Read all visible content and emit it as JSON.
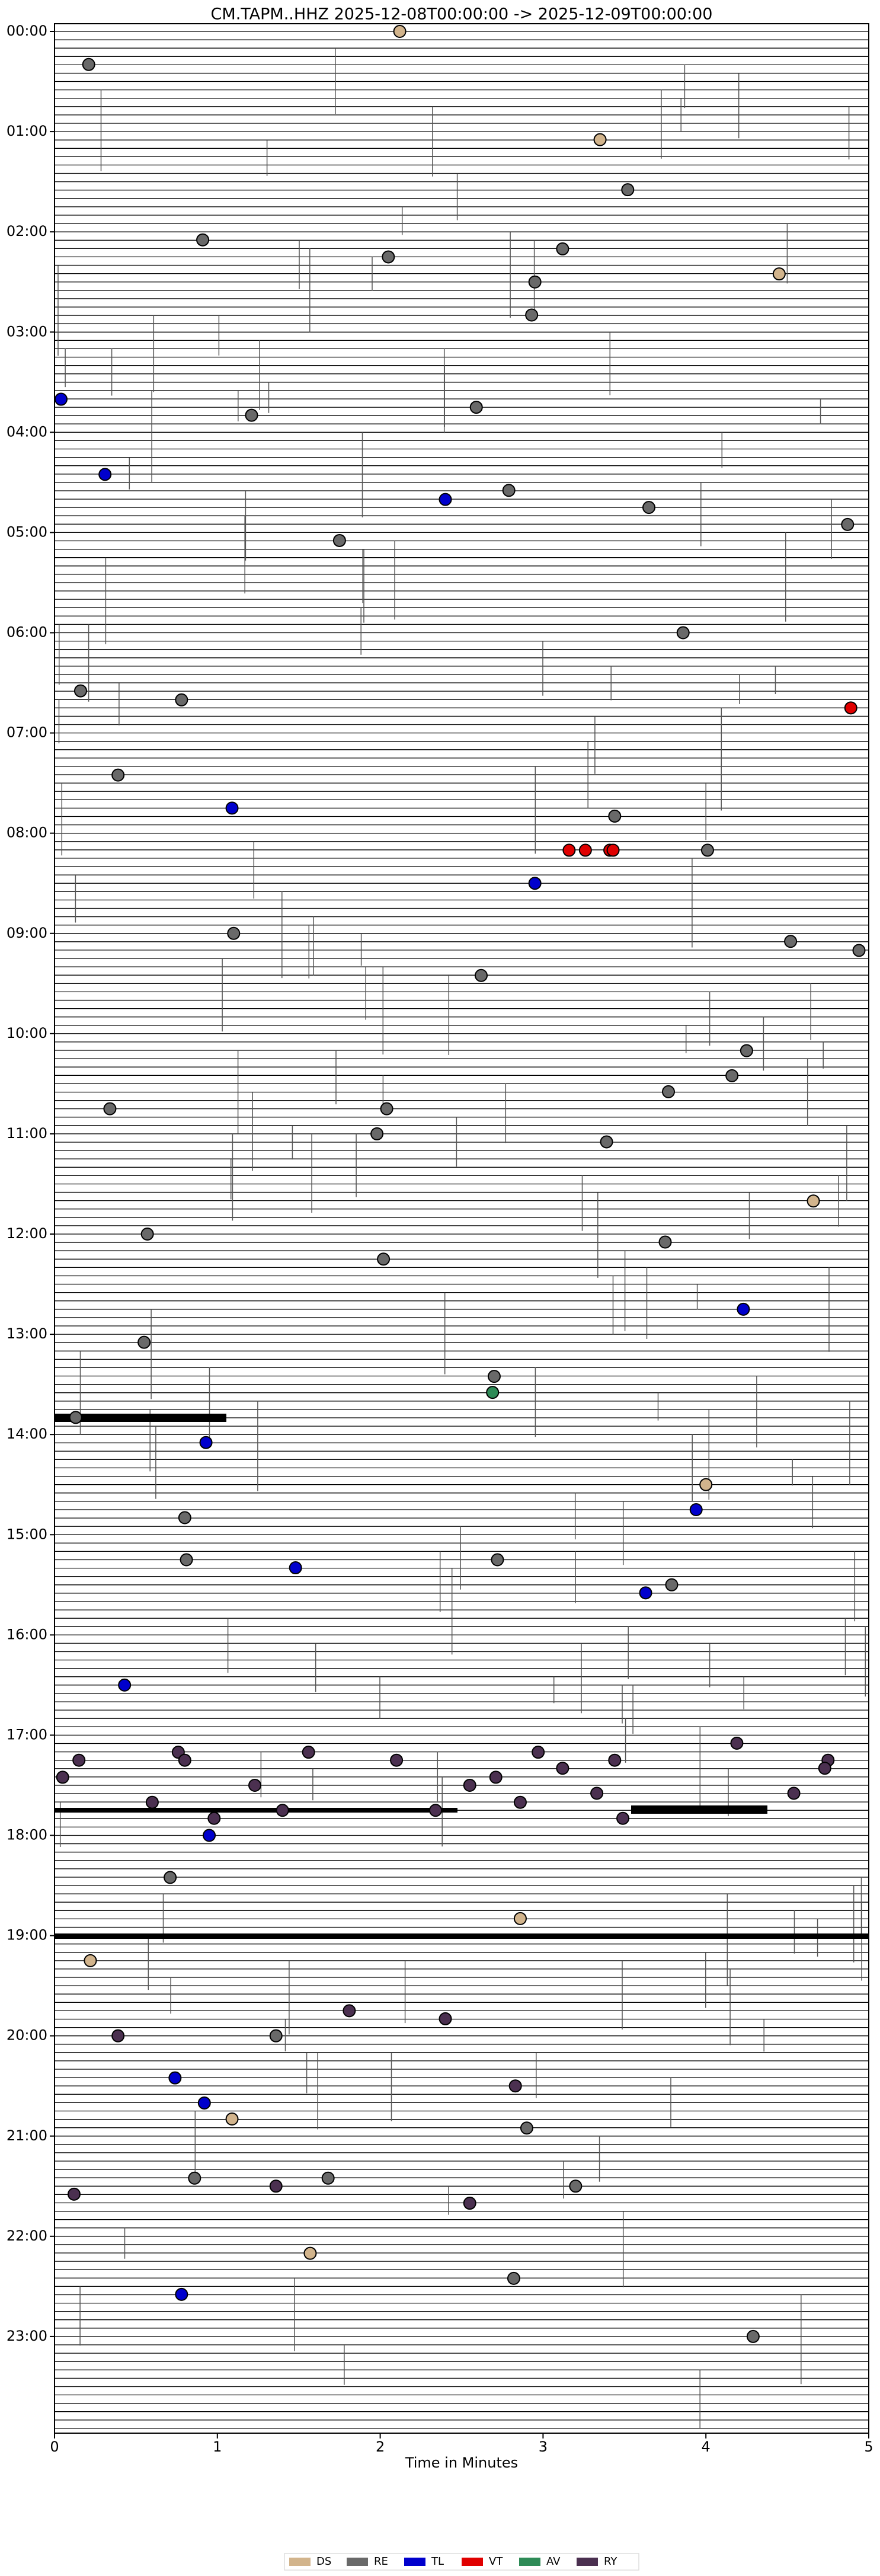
{
  "chart_data": {
    "type": "scatter",
    "title": "CM.TAPM..HHZ  2025-12-08T00:00:00 -> 2025-12-09T00:00:00",
    "x_label": "Time in Minutes",
    "xlim": [
      0,
      5
    ],
    "xticks": [
      0,
      1,
      2,
      3,
      4,
      5
    ],
    "ylim": [
      0,
      24
    ],
    "y_inverted": true,
    "yticks": [
      {
        "value": 0,
        "label": "00:00"
      },
      {
        "value": 1,
        "label": "01:00"
      },
      {
        "value": 2,
        "label": "02:00"
      },
      {
        "value": 3,
        "label": "03:00"
      },
      {
        "value": 4,
        "label": "04:00"
      },
      {
        "value": 5,
        "label": "05:00"
      },
      {
        "value": 6,
        "label": "06:00"
      },
      {
        "value": 7,
        "label": "07:00"
      },
      {
        "value": 8,
        "label": "08:00"
      },
      {
        "value": 9,
        "label": "09:00"
      },
      {
        "value": 10,
        "label": "10:00"
      },
      {
        "value": 11,
        "label": "11:00"
      },
      {
        "value": 12,
        "label": "12:00"
      },
      {
        "value": 13,
        "label": "13:00"
      },
      {
        "value": 14,
        "label": "14:00"
      },
      {
        "value": 15,
        "label": "15:00"
      },
      {
        "value": 16,
        "label": "16:00"
      },
      {
        "value": 17,
        "label": "17:00"
      },
      {
        "value": 18,
        "label": "18:00"
      },
      {
        "value": 19,
        "label": "19:00"
      },
      {
        "value": 20,
        "label": "20:00"
      },
      {
        "value": 21,
        "label": "21:00"
      },
      {
        "value": 22,
        "label": "22:00"
      },
      {
        "value": 23,
        "label": "23:00"
      }
    ],
    "legend": "bottom",
    "series": [
      {
        "name": "DS",
        "color": "#d2b48c",
        "x": [
          2.12,
          3.35,
          4.45,
          4.66,
          4.0,
          2.86,
          0.22,
          1.09,
          1.57
        ],
        "y": [
          0,
          1.08,
          2.42,
          11.67,
          14.5,
          18.83,
          19.25,
          20.83,
          22.17
        ]
      },
      {
        "name": "RE",
        "color": "#696969",
        "x": [
          0.21,
          3.52,
          0.91,
          2.05,
          3.12,
          2.95,
          2.93,
          1.21,
          2.59,
          2.79,
          3.65,
          4.87,
          1.75,
          3.86,
          0.16,
          0.78,
          0.39,
          3.44,
          4.01,
          1.1,
          4.52,
          4.94,
          2.62,
          4.25,
          4.16,
          0.34,
          2.04,
          3.77,
          1.98,
          3.39,
          0.57,
          3.75,
          2.02,
          0.55,
          2.7,
          0.13,
          0.8,
          0.81,
          2.72,
          3.79,
          0.71,
          1.36,
          2.9,
          0.86,
          1.68,
          3.2,
          2.82,
          4.29
        ],
        "y": [
          0.33,
          1.58,
          2.08,
          2.25,
          2.17,
          2.5,
          2.83,
          3.83,
          3.75,
          4.58,
          4.75,
          4.92,
          5.08,
          6.0,
          6.58,
          6.67,
          7.42,
          7.83,
          8.17,
          9.0,
          9.08,
          9.17,
          9.42,
          10.17,
          10.42,
          10.75,
          10.75,
          10.58,
          11.0,
          11.08,
          12.0,
          12.08,
          12.25,
          13.08,
          13.42,
          13.83,
          14.83,
          15.25,
          15.25,
          15.5,
          18.42,
          20.0,
          20.92,
          21.42,
          21.42,
          21.5,
          22.42,
          23.0
        ]
      },
      {
        "name": "TL",
        "color": "#0000cd",
        "x": [
          0.04,
          0.31,
          2.4,
          1.09,
          2.95,
          4.23,
          0.93,
          3.94,
          1.48,
          3.63,
          0.43,
          0.95,
          0.74,
          0.92,
          0.78
        ],
        "y": [
          3.67,
          4.42,
          4.67,
          7.75,
          8.5,
          12.75,
          14.08,
          14.75,
          15.33,
          15.58,
          16.5,
          18.0,
          20.42,
          20.67,
          22.58
        ]
      },
      {
        "name": "VT",
        "color": "#e00000",
        "x": [
          4.89,
          3.16,
          3.26,
          3.41,
          3.43
        ],
        "y": [
          6.75,
          8.17,
          8.17,
          8.17,
          8.17
        ]
      },
      {
        "name": "AV",
        "color": "#2e8b57",
        "x": [
          2.69
        ],
        "y": [
          13.58
        ]
      },
      {
        "name": "RY",
        "color": "#4b3050",
        "x": [
          4.19,
          0.76,
          1.56,
          2.97,
          0.15,
          0.8,
          2.1,
          3.44,
          4.75,
          3.12,
          4.73,
          0.05,
          2.71,
          1.23,
          2.55,
          3.33,
          4.54,
          0.6,
          2.86,
          1.4,
          2.34,
          0.98,
          3.49,
          1.81,
          2.4,
          0.39,
          2.83,
          1.36,
          0.12,
          2.55
        ],
        "y": [
          17.08,
          17.17,
          17.17,
          17.17,
          17.25,
          17.25,
          17.25,
          17.25,
          17.25,
          17.33,
          17.33,
          17.42,
          17.42,
          17.5,
          17.5,
          17.58,
          17.58,
          17.67,
          17.67,
          17.75,
          17.75,
          17.83,
          17.83,
          19.75,
          19.83,
          20.0,
          20.5,
          21.5,
          21.58,
          21.67
        ]
      }
    ]
  }
}
